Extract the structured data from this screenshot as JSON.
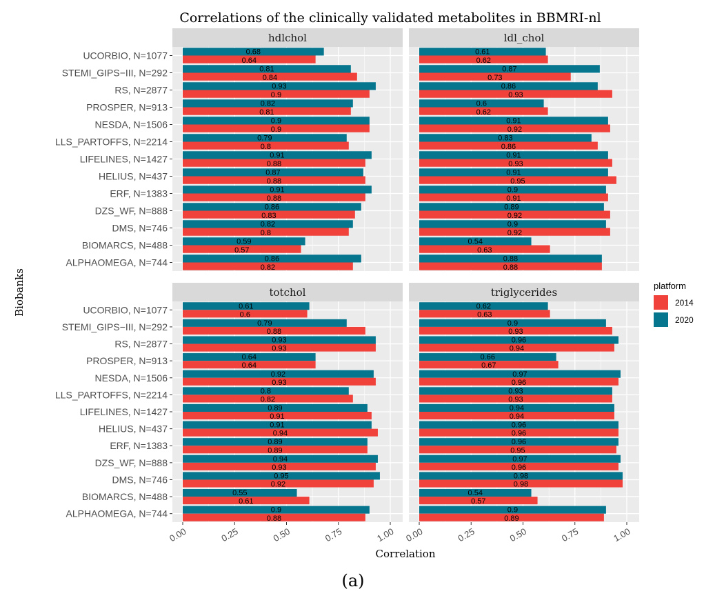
{
  "chart_data": {
    "type": "bar",
    "orientation": "horizontal",
    "title": "Correlations of the clinically validated metabolites in BBMRI-nl",
    "xlabel": "Correlation",
    "ylabel": "Biobanks",
    "xlim": [
      0,
      1
    ],
    "xticks": [
      "0.00",
      "0.25",
      "0.50",
      "0.75",
      "1.00"
    ],
    "grid": true,
    "legend": {
      "title": "platform",
      "position": "right",
      "entries": [
        {
          "name": "2014",
          "color": "#f0413a"
        },
        {
          "name": "2020",
          "color": "#06768f"
        }
      ]
    },
    "categories": [
      "UCORBIO, N=1077",
      "STEMI_GIPS−III, N=292",
      "RS, N=2877",
      "PROSPER, N=913",
      "NESDA, N=1506",
      "LLS_PARTOFFS, N=2214",
      "LIFELINES, N=1427",
      "HELIUS, N=437",
      "ERF, N=1383",
      "DZS_WF, N=888",
      "DMS, N=746",
      "BIOMARCS, N=488",
      "ALPHAOMEGA, N=744"
    ],
    "panels": [
      {
        "name": "hdlchol",
        "series": [
          {
            "name": "2020",
            "values": [
              0.68,
              0.81,
              0.93,
              0.82,
              0.9,
              0.79,
              0.91,
              0.87,
              0.91,
              0.86,
              0.82,
              0.59,
              0.86
            ]
          },
          {
            "name": "2014",
            "values": [
              0.64,
              0.84,
              0.9,
              0.81,
              0.9,
              0.8,
              0.88,
              0.88,
              0.88,
              0.83,
              0.8,
              0.57,
              0.82
            ]
          }
        ]
      },
      {
        "name": "ldl_chol",
        "series": [
          {
            "name": "2020",
            "values": [
              0.61,
              0.87,
              0.86,
              0.6,
              0.91,
              0.83,
              0.91,
              0.91,
              0.9,
              0.89,
              0.9,
              0.54,
              0.88
            ]
          },
          {
            "name": "2014",
            "values": [
              0.62,
              0.73,
              0.93,
              0.62,
              0.92,
              0.86,
              0.93,
              0.95,
              0.91,
              0.92,
              0.92,
              0.63,
              0.88
            ]
          }
        ]
      },
      {
        "name": "totchol",
        "series": [
          {
            "name": "2020",
            "values": [
              0.61,
              0.79,
              0.93,
              0.64,
              0.92,
              0.8,
              0.89,
              0.91,
              0.89,
              0.94,
              0.95,
              0.55,
              0.9
            ]
          },
          {
            "name": "2014",
            "values": [
              0.6,
              0.88,
              0.93,
              0.64,
              0.93,
              0.82,
              0.91,
              0.94,
              0.89,
              0.93,
              0.92,
              0.61,
              0.88
            ]
          }
        ]
      },
      {
        "name": "triglycerides",
        "series": [
          {
            "name": "2020",
            "values": [
              0.62,
              0.9,
              0.96,
              0.66,
              0.97,
              0.93,
              0.94,
              0.96,
              0.96,
              0.97,
              0.98,
              0.54,
              0.9
            ]
          },
          {
            "name": "2014",
            "values": [
              0.63,
              0.93,
              0.94,
              0.67,
              0.96,
              0.93,
              0.94,
              0.96,
              0.95,
              0.96,
              0.98,
              0.57,
              0.89
            ]
          }
        ]
      }
    ]
  },
  "caption": "(a)"
}
